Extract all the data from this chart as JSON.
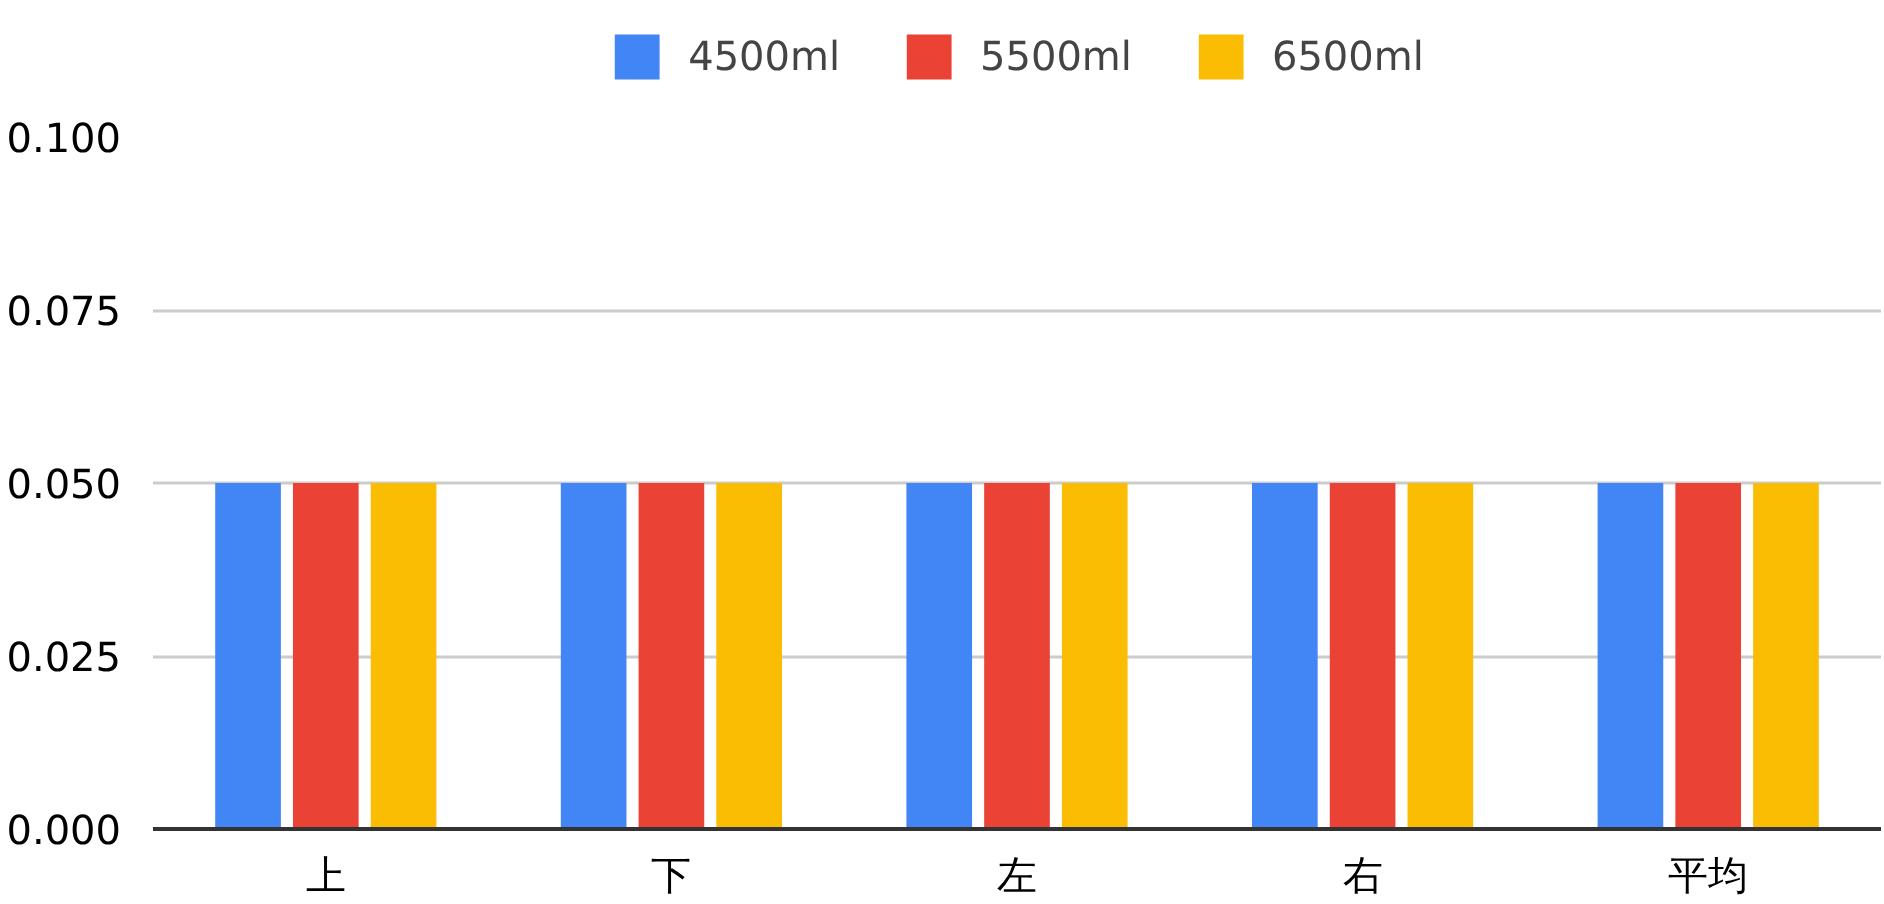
{
  "chart_data": {
    "type": "bar",
    "categories": [
      "上",
      "下",
      "左",
      "右",
      "平均"
    ],
    "series": [
      {
        "name": "4500ml",
        "color": "#4285f4",
        "values": [
          0.05,
          0.05,
          0.05,
          0.05,
          0.05
        ]
      },
      {
        "name": "5500ml",
        "color": "#ea4335",
        "values": [
          0.05,
          0.05,
          0.05,
          0.05,
          0.05
        ]
      },
      {
        "name": "6500ml",
        "color": "#fbbc04",
        "values": [
          0.05,
          0.05,
          0.05,
          0.05,
          0.05
        ]
      }
    ],
    "ylim": [
      0,
      0.1
    ],
    "yticks": [
      {
        "value": 0,
        "label": "0.000"
      },
      {
        "value": 0.025,
        "label": "0.025"
      },
      {
        "value": 0.05,
        "label": "0.050"
      },
      {
        "value": 0.075,
        "label": "0.075"
      },
      {
        "value": 0.1,
        "label": "0.100"
      }
    ],
    "grid": "y",
    "legend": "top"
  }
}
